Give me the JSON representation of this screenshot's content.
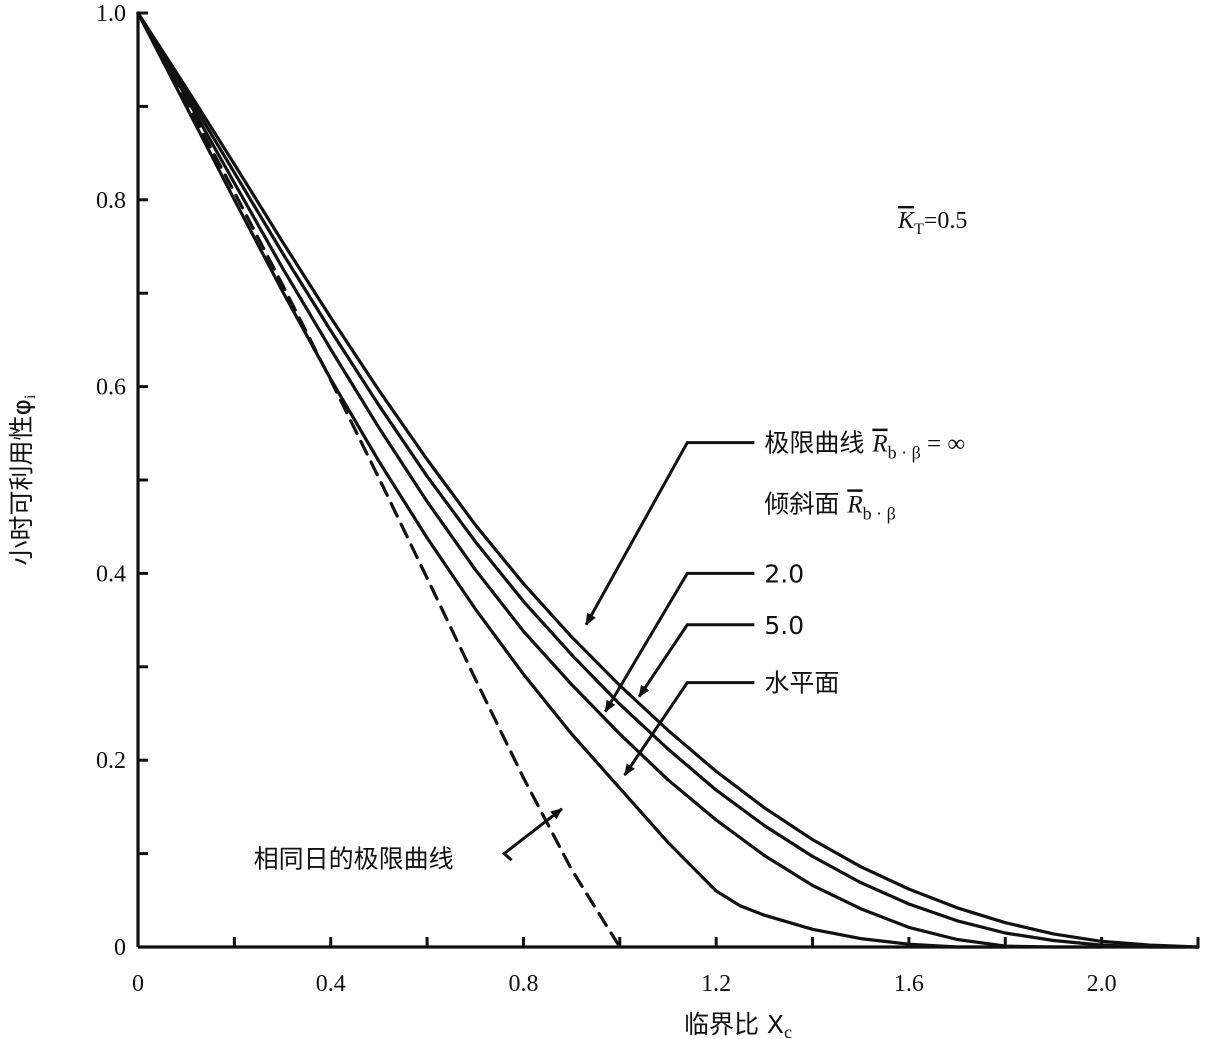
{
  "chart_data": {
    "type": "line",
    "xlabel": "临界比 X",
    "xlabel_sub": "c",
    "ylabel": "小时可利用性φ",
    "ylabel_sub": "i",
    "xlim": [
      0,
      2.2
    ],
    "ylim": [
      0,
      1.0
    ],
    "x_ticks": [
      0,
      0.4,
      0.8,
      1.2,
      1.6,
      2.0
    ],
    "x_tick_labels": [
      "0",
      "0.4",
      "0.8",
      "1.2",
      "1.6",
      "2.0"
    ],
    "y_ticks": [
      0,
      0.2,
      0.4,
      0.6,
      0.8,
      1.0
    ],
    "y_tick_labels": [
      "0",
      "0.2",
      "0.4",
      "0.6",
      "0.8",
      "1.0"
    ],
    "kt_label": {
      "symbol": "K",
      "sub": "T",
      "value": "=0.5"
    },
    "series": [
      {
        "key": "limit_inf",
        "style": "solid",
        "x": [
          0,
          0.1,
          0.2,
          0.3,
          0.4,
          0.5,
          0.6,
          0.7,
          0.8,
          0.9,
          1.0,
          1.1,
          1.2,
          1.3,
          1.4,
          1.5,
          1.6,
          1.7,
          1.8,
          1.9,
          2.0,
          2.1,
          2.2
        ],
        "y": [
          1.0,
          0.92,
          0.838,
          0.755,
          0.674,
          0.596,
          0.522,
          0.452,
          0.389,
          0.332,
          0.28,
          0.232,
          0.188,
          0.149,
          0.115,
          0.086,
          0.062,
          0.042,
          0.026,
          0.014,
          0.006,
          0.002,
          0.0
        ]
      },
      {
        "key": "tilt_2",
        "style": "solid",
        "x": [
          0,
          0.1,
          0.2,
          0.3,
          0.4,
          0.5,
          0.6,
          0.7,
          0.8,
          0.9,
          1.0,
          1.1,
          1.2,
          1.3,
          1.4,
          1.5,
          1.6,
          1.7,
          1.8,
          1.9,
          2.0,
          2.1,
          2.2
        ],
        "y": [
          1.0,
          0.915,
          0.829,
          0.743,
          0.66,
          0.58,
          0.504,
          0.434,
          0.37,
          0.313,
          0.26,
          0.212,
          0.168,
          0.13,
          0.097,
          0.069,
          0.046,
          0.028,
          0.015,
          0.007,
          0.002,
          0.0,
          0.0
        ]
      },
      {
        "key": "tilt_5",
        "style": "solid",
        "x": [
          0,
          0.1,
          0.2,
          0.3,
          0.4,
          0.5,
          0.6,
          0.7,
          0.8,
          0.9,
          1.0,
          1.1,
          1.2,
          1.3,
          1.4,
          1.5,
          1.6,
          1.7,
          1.8,
          1.9,
          2.0
        ],
        "y": [
          1.0,
          0.91,
          0.818,
          0.727,
          0.64,
          0.556,
          0.477,
          0.404,
          0.338,
          0.281,
          0.228,
          0.179,
          0.136,
          0.098,
          0.066,
          0.041,
          0.021,
          0.008,
          0.001,
          0.0,
          0.0
        ]
      },
      {
        "key": "horizontal",
        "style": "solid",
        "x": [
          0,
          0.1,
          0.2,
          0.3,
          0.4,
          0.5,
          0.6,
          0.7,
          0.8,
          0.9,
          1.0,
          1.1,
          1.2,
          1.25,
          1.3,
          1.4,
          1.5,
          1.6,
          1.7,
          1.8
        ],
        "y": [
          1.0,
          0.9,
          0.8,
          0.702,
          0.608,
          0.52,
          0.438,
          0.362,
          0.292,
          0.228,
          0.17,
          0.112,
          0.06,
          0.044,
          0.034,
          0.019,
          0.009,
          0.003,
          0.0,
          0.0
        ]
      },
      {
        "key": "same_day",
        "style": "dashed",
        "x": [
          0,
          0.1,
          0.2,
          0.3,
          0.4,
          0.5,
          0.6,
          0.7,
          0.8,
          0.9,
          1.0
        ],
        "y": [
          1.0,
          0.905,
          0.808,
          0.709,
          0.607,
          0.502,
          0.395,
          0.287,
          0.181,
          0.083,
          0.0
        ]
      }
    ],
    "annotations": [
      {
        "key": "limit_inf",
        "text": "极限曲线",
        "r_label": {
          "symbol": "R",
          "sub": "b · β",
          "suffix": " = ∞"
        },
        "text_at": [
          1.3,
          0.54
        ],
        "elbow_at": [
          1.14,
          0.54
        ],
        "arrow_to": [
          0.93,
          0.345
        ]
      },
      {
        "key": "tilted_heading",
        "text": "倾斜面",
        "r_label": {
          "symbol": "R",
          "sub": "b · β",
          "suffix": ""
        },
        "text_at": [
          1.3,
          0.475
        ]
      },
      {
        "key": "tilt_2",
        "text": "2.0",
        "text_at": [
          1.3,
          0.4
        ],
        "elbow_at": [
          1.14,
          0.4
        ],
        "arrow_to": [
          0.97,
          0.252
        ]
      },
      {
        "key": "tilt_5",
        "text": "5.0",
        "text_at": [
          1.3,
          0.345
        ],
        "elbow_at": [
          1.14,
          0.345
        ],
        "arrow_to": [
          1.04,
          0.268
        ]
      },
      {
        "key": "horizontal",
        "text": "水平面",
        "text_at": [
          1.3,
          0.283
        ],
        "elbow_at": [
          1.14,
          0.283
        ],
        "arrow_to": [
          1.01,
          0.184
        ]
      },
      {
        "key": "same_day",
        "text": "相同日的极限曲线",
        "text_at": [
          0.24,
          0.095
        ],
        "elbow_at": [
          0.76,
          0.1
        ],
        "arrow_to": [
          0.88,
          0.148
        ]
      }
    ]
  }
}
